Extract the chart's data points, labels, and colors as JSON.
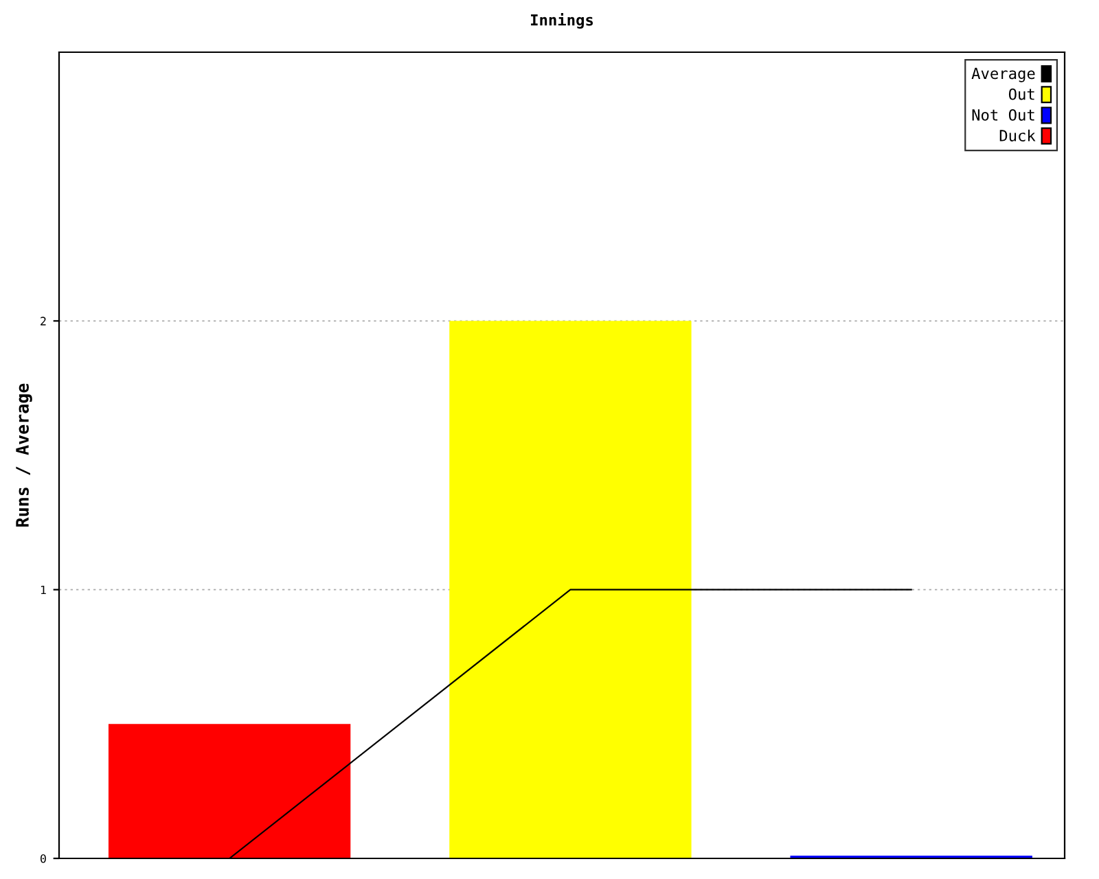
{
  "chart_data": {
    "type": "bar",
    "title": "Innings",
    "ylabel": "Runs / Average",
    "categories": [
      null,
      null,
      null
    ],
    "series": [
      {
        "name": "Average",
        "type": "line",
        "color": "#000000",
        "values": [
          0,
          1,
          1
        ]
      },
      {
        "name": "Out",
        "color": "#ffff00",
        "values": [
          null,
          2,
          null
        ]
      },
      {
        "name": "Not Out",
        "color": "#0000ff",
        "values": [
          null,
          null,
          0.01
        ]
      },
      {
        "name": "Duck",
        "color": "#ff0000",
        "values": [
          0.5,
          null,
          null
        ]
      }
    ],
    "ylim": [
      0,
      3
    ],
    "yticks": [
      0,
      1,
      2
    ],
    "grid": "y",
    "legend": "top right",
    "tick_labels": "y"
  }
}
